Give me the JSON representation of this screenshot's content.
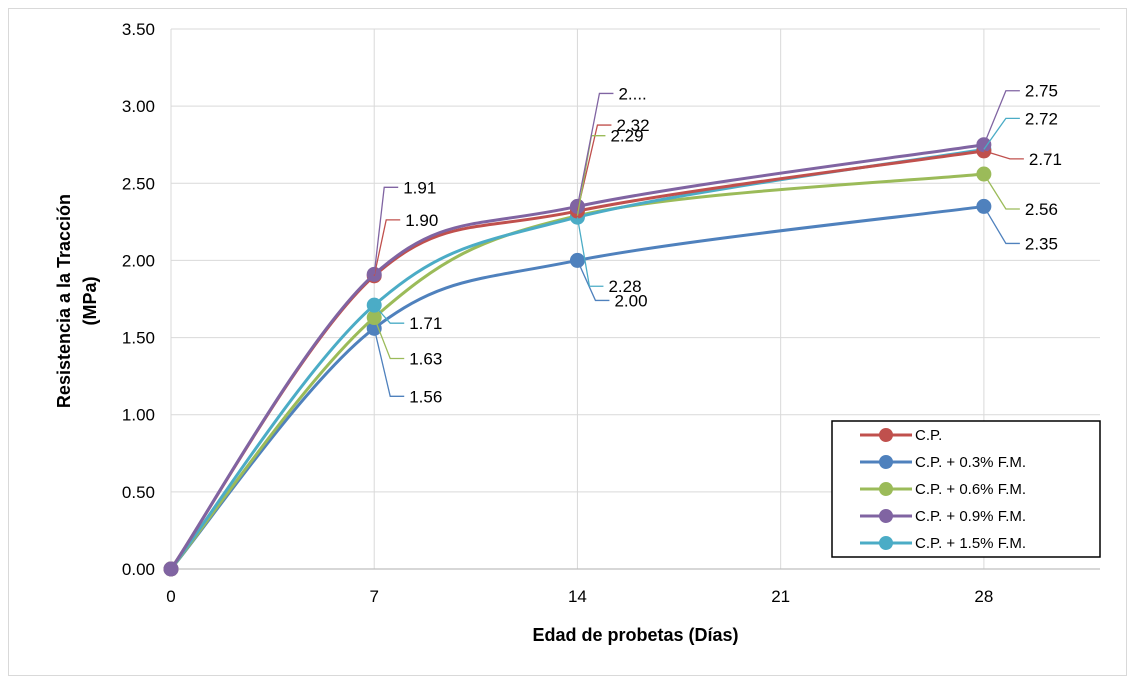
{
  "chart_data": {
    "type": "line",
    "title": "",
    "xlabel": "Edad de probetas (Días)",
    "ylabel_line1": "Resistencia a la Tracción",
    "ylabel_line2": "(MPa)",
    "x": [
      0,
      7,
      14,
      28
    ],
    "xticks": [
      "0",
      "7",
      "14",
      "21",
      "28"
    ],
    "xlim": [
      0,
      32
    ],
    "ylim": [
      0,
      3.5
    ],
    "yticks": [
      "0.00",
      "0.50",
      "1.00",
      "1.50",
      "2.00",
      "2.50",
      "3.00",
      "3.50"
    ],
    "grid": true,
    "legend_position": "bottom-right",
    "series": [
      {
        "name": "C.P.",
        "color": "#c0504d",
        "values": [
          0.0,
          1.9,
          2.32,
          2.71
        ],
        "labels": [
          "",
          "1.90",
          "2.32",
          "2.71"
        ]
      },
      {
        "name": "C.P. + 0.3% F.M.",
        "color": "#4f81bd",
        "values": [
          0.0,
          1.56,
          2.0,
          2.35
        ],
        "labels": [
          "",
          "1.56",
          "2.00",
          "2.35"
        ]
      },
      {
        "name": "C.P. + 0.6% F.M.",
        "color": "#9bbb59",
        "values": [
          0.0,
          1.63,
          2.29,
          2.56
        ],
        "labels": [
          "",
          "1.63",
          "2.29",
          "2.56"
        ]
      },
      {
        "name": "C.P. + 0.9% F.M.",
        "color": "#8064a2",
        "values": [
          0.0,
          1.91,
          2.35,
          2.75
        ],
        "labels": [
          "",
          "1.91",
          "2....",
          "2.75"
        ]
      },
      {
        "name": "C.P. + 1.5% F.M.",
        "color": "#4bacc6",
        "values": [
          0.0,
          1.71,
          2.28,
          2.72
        ],
        "labels": [
          "",
          "1.71",
          "2.28",
          "2.72"
        ]
      }
    ]
  }
}
